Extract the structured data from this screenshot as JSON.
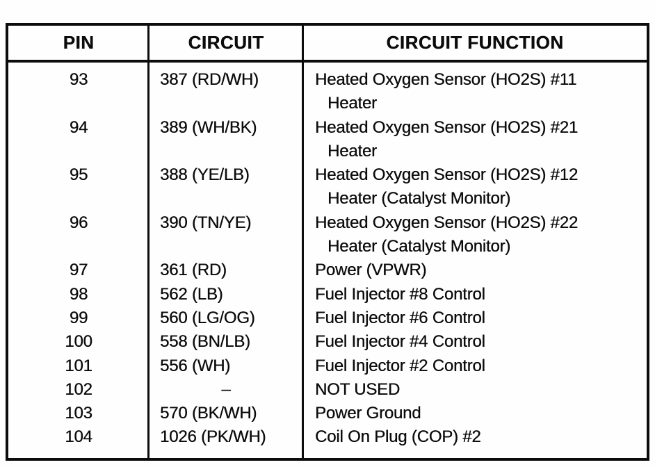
{
  "document": {
    "kind": "connector-pinout-table",
    "colors": {
      "ink": "#0c0c0c",
      "paper": "#fefefe"
    },
    "table": {
      "headers": {
        "pin": "PIN",
        "circuit": "CIRCUIT",
        "function": "CIRCUIT FUNCTION"
      },
      "rows": [
        {
          "pin": "93",
          "circuit": "387 (RD/WH)",
          "circuit_centered": false,
          "function_lines": [
            "Heated Oxygen Sensor (HO2S) #11",
            "Heater"
          ]
        },
        {
          "pin": "94",
          "circuit": "389 (WH/BK)",
          "circuit_centered": false,
          "function_lines": [
            "Heated Oxygen Sensor (HO2S) #21",
            "Heater"
          ]
        },
        {
          "pin": "95",
          "circuit": "388 (YE/LB)",
          "circuit_centered": false,
          "function_lines": [
            "Heated Oxygen Sensor (HO2S) #12",
            "Heater (Catalyst Monitor)"
          ]
        },
        {
          "pin": "96",
          "circuit": "390 (TN/YE)",
          "circuit_centered": false,
          "function_lines": [
            "Heated Oxygen Sensor (HO2S) #22",
            "Heater (Catalyst Monitor)"
          ]
        },
        {
          "pin": "97",
          "circuit": "361 (RD)",
          "circuit_centered": false,
          "function_lines": [
            "Power (VPWR)"
          ]
        },
        {
          "pin": "98",
          "circuit": "562 (LB)",
          "circuit_centered": false,
          "function_lines": [
            "Fuel Injector #8 Control"
          ]
        },
        {
          "pin": "99",
          "circuit": "560 (LG/OG)",
          "circuit_centered": false,
          "function_lines": [
            "Fuel Injector #6 Control"
          ]
        },
        {
          "pin": "100",
          "circuit": "558 (BN/LB)",
          "circuit_centered": false,
          "function_lines": [
            "Fuel Injector #4 Control"
          ]
        },
        {
          "pin": "101",
          "circuit": "556 (WH)",
          "circuit_centered": false,
          "function_lines": [
            "Fuel Injector #2 Control"
          ]
        },
        {
          "pin": "102",
          "circuit": "–",
          "circuit_centered": true,
          "function_lines": [
            "NOT USED"
          ]
        },
        {
          "pin": "103",
          "circuit": "570 (BK/WH)",
          "circuit_centered": false,
          "function_lines": [
            "Power Ground"
          ]
        },
        {
          "pin": "104",
          "circuit": "1026 (PK/WH)",
          "circuit_centered": false,
          "function_lines": [
            "Coil On Plug (COP) #2"
          ]
        }
      ]
    }
  }
}
